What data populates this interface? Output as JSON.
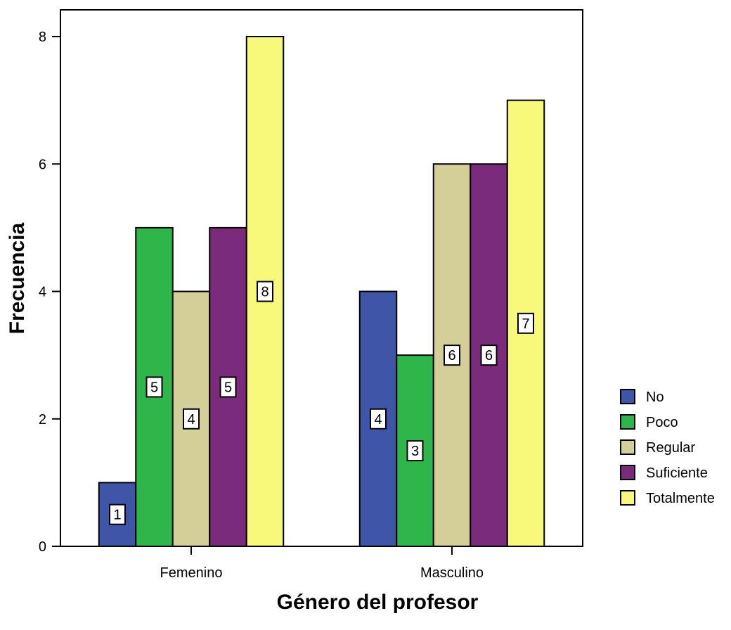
{
  "chart_data": {
    "type": "bar",
    "title": "",
    "xlabel": "Género del profesor",
    "ylabel": "Frecuencia",
    "categories": [
      "Femenino",
      "Masculino"
    ],
    "ylim": [
      0,
      8
    ],
    "yticks": [
      0,
      2,
      4,
      6,
      8
    ],
    "grid": false,
    "legend_position": "right",
    "series": [
      {
        "name": "No",
        "color": "#3F55A8",
        "values": [
          1,
          4
        ]
      },
      {
        "name": "Poco",
        "color": "#2FB64A",
        "values": [
          5,
          3
        ]
      },
      {
        "name": "Regular",
        "color": "#D4CE98",
        "values": [
          4,
          6
        ]
      },
      {
        "name": "Suficiente",
        "color": "#7B2B7C",
        "values": [
          5,
          6
        ]
      },
      {
        "name": "Totalmente",
        "color": "#F8F87A",
        "values": [
          8,
          7
        ]
      }
    ]
  }
}
